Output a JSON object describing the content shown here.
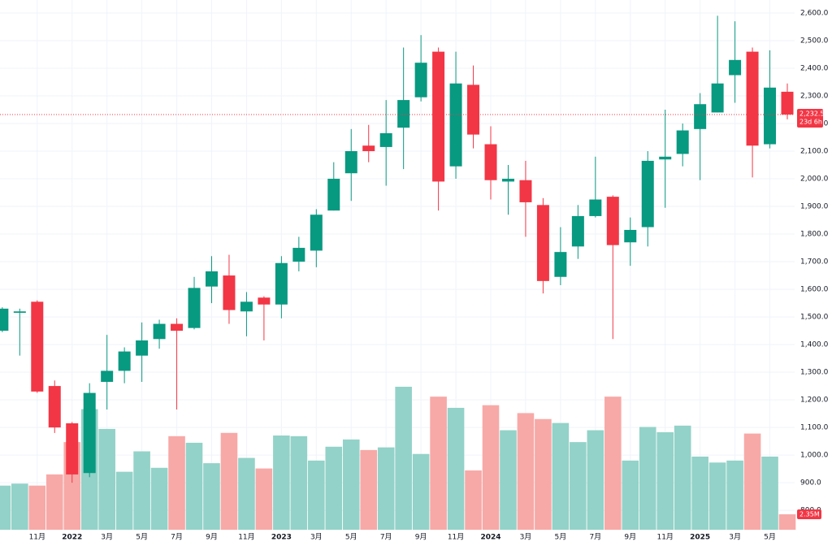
{
  "chart_data": {
    "type": "candlestick",
    "categories": [
      null,
      null,
      "11月",
      null,
      "2022",
      null,
      "3月",
      null,
      "5月",
      null,
      "7月",
      null,
      "9月",
      null,
      "11月",
      null,
      "2023",
      null,
      "3月",
      null,
      "5月",
      null,
      "7月",
      null,
      "9月",
      null,
      "11月",
      null,
      "2024",
      null,
      "3月",
      null,
      "5月",
      null,
      "7月",
      null,
      "9月",
      null,
      "11月",
      null,
      "2025",
      null,
      "3月",
      null,
      "5月",
      null
    ],
    "open": [
      1450,
      1515,
      1555,
      1250,
      1115,
      935,
      1265,
      1305,
      1360,
      1420,
      1475,
      1460,
      1610,
      1650,
      1520,
      1570,
      1545,
      1700,
      1740,
      1885,
      2020,
      2120,
      2115,
      2185,
      2295,
      2460,
      2045,
      2340,
      2125,
      1990,
      1995,
      1905,
      1645,
      1755,
      1865,
      1935,
      1770,
      1825,
      2070,
      2090,
      2180,
      2240,
      2375,
      2460,
      2125,
      2315
    ],
    "high": [
      1535,
      1530,
      1560,
      1270,
      1120,
      1260,
      1435,
      1390,
      1480,
      1490,
      1495,
      1645,
      1720,
      1725,
      1590,
      1575,
      1720,
      1790,
      1890,
      2060,
      2180,
      2195,
      2285,
      2475,
      2520,
      2475,
      2460,
      2410,
      2190,
      2050,
      2065,
      1930,
      1825,
      1905,
      2080,
      1940,
      1860,
      2100,
      2250,
      2200,
      2310,
      2590,
      2570,
      2475,
      2465,
      2345
    ],
    "low": [
      1445,
      1360,
      1225,
      1080,
      900,
      920,
      1165,
      1260,
      1265,
      1385,
      1165,
      1455,
      1550,
      1475,
      1430,
      1415,
      1495,
      1665,
      1680,
      1885,
      1920,
      2060,
      1975,
      2035,
      2280,
      1885,
      2000,
      2110,
      1925,
      1870,
      1790,
      1585,
      1615,
      1710,
      1860,
      1420,
      1685,
      1755,
      1895,
      2045,
      1995,
      2240,
      2275,
      2005,
      2110,
      2215
    ],
    "close": [
      1530,
      1520,
      1230,
      1100,
      930,
      1225,
      1305,
      1375,
      1415,
      1475,
      1450,
      1605,
      1665,
      1525,
      1555,
      1545,
      1695,
      1750,
      1870,
      2000,
      2100,
      2100,
      2165,
      2285,
      2420,
      1990,
      2345,
      2160,
      1995,
      2000,
      1915,
      1630,
      1735,
      1865,
      1925,
      1760,
      1815,
      2065,
      2080,
      2175,
      2270,
      2345,
      2430,
      2120,
      2330,
      2232.5
    ],
    "volume": [
      6.7,
      7.0,
      6.7,
      8.4,
      13.3,
      18.3,
      15.3,
      8.8,
      11.9,
      9.4,
      14.2,
      13.2,
      10.1,
      14.7,
      10.9,
      9.3,
      14.3,
      14.2,
      10.5,
      12.6,
      13.7,
      12.1,
      12.5,
      21.7,
      11.5,
      20.2,
      18.5,
      9.0,
      18.9,
      15.1,
      17.7,
      16.8,
      16.2,
      13.3,
      15.1,
      20.2,
      10.5,
      15.6,
      14.8,
      15.8,
      11.1,
      10.2,
      10.5,
      14.6,
      11.1,
      2.35
    ],
    "up_color": "#089981",
    "down_color": "#f23645",
    "volume_up_color": "#93d2c8",
    "volume_down_color": "#f7a9a7",
    "ylim": [
      671,
      2647
    ],
    "yticks": [
      {
        "value": 800,
        "label": "800.0"
      },
      {
        "value": 900,
        "label": "900.0"
      },
      {
        "value": 1000,
        "label": "1,000.0"
      },
      {
        "value": 1100,
        "label": "1,100.0"
      },
      {
        "value": 1200,
        "label": "1,200.0"
      },
      {
        "value": 1300,
        "label": "1,300.0"
      },
      {
        "value": 1400,
        "label": "1,400.0"
      },
      {
        "value": 1500,
        "label": "1,500.0"
      },
      {
        "value": 1600,
        "label": "1,600.0"
      },
      {
        "value": 1700,
        "label": "1,700.0"
      },
      {
        "value": 1800,
        "label": "1,800.0"
      },
      {
        "value": 1900,
        "label": "1,900.0"
      },
      {
        "value": 2000,
        "label": "2,000.0"
      },
      {
        "value": 2100,
        "label": "2,100.0"
      },
      {
        "value": 2200,
        "label": "2,200.0"
      },
      {
        "value": 2300,
        "label": "2,300.0"
      },
      {
        "value": 2400,
        "label": "2,400.0"
      },
      {
        "value": 2500,
        "label": "2,500.0"
      },
      {
        "value": 2600,
        "label": "2,600.0"
      }
    ],
    "grid": true,
    "last_price": {
      "value": 2232.5,
      "label": "2,232.5"
    },
    "countdown": "23d 6h",
    "last_volume": {
      "value": 2.35,
      "label": "2.35M"
    }
  }
}
